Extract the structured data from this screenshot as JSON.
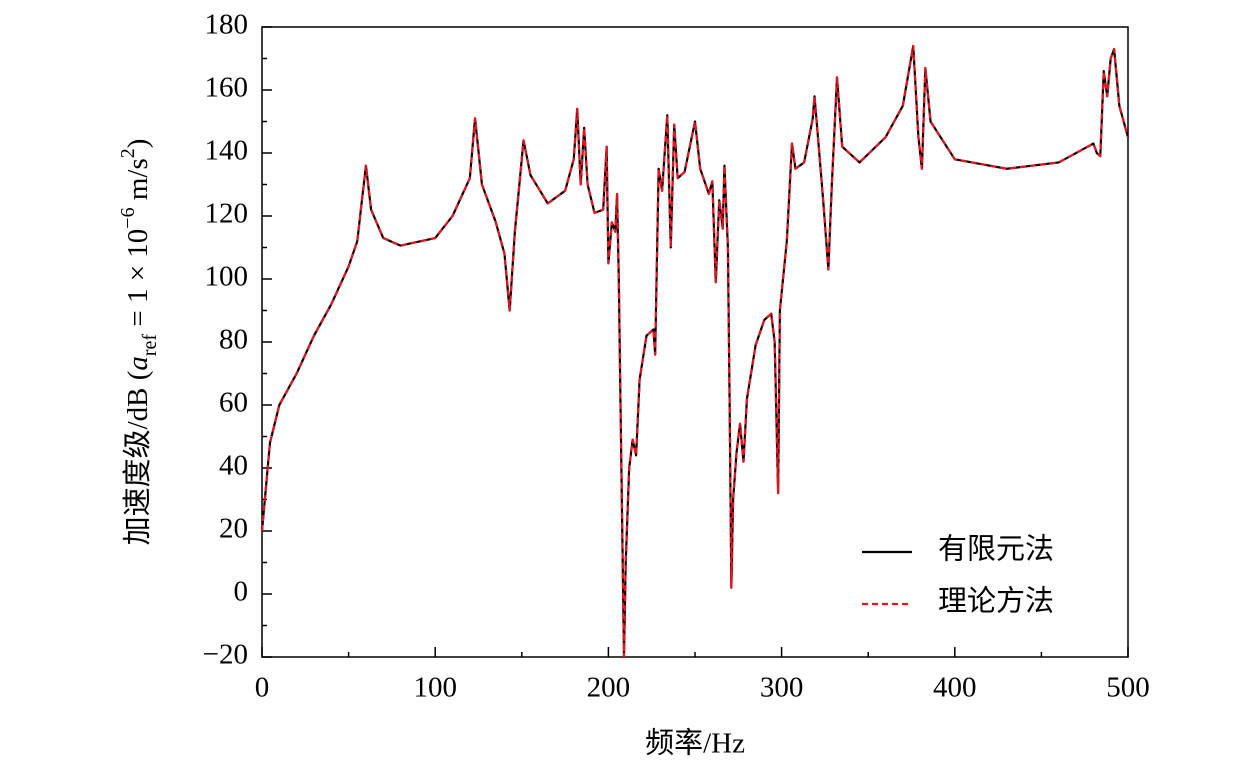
{
  "chart_data": {
    "type": "line",
    "x_label": "频率/Hz",
    "y_label": [
      "加速度级/dB (",
      "a",
      "ref",
      " = 1 × 10",
      "−6",
      " m/s",
      "2",
      ")"
    ],
    "x": [
      0,
      4.6,
      10,
      20,
      30,
      40,
      50,
      55,
      60,
      63,
      70,
      80,
      100,
      110,
      120,
      123,
      127,
      135,
      140,
      143,
      146,
      151,
      155,
      165,
      175,
      180,
      182,
      184,
      186,
      188,
      192,
      197,
      199,
      200,
      202,
      204,
      205,
      206,
      208,
      209,
      210,
      212,
      214,
      216,
      218,
      222,
      226,
      227,
      229,
      231,
      234,
      236,
      238,
      240,
      244,
      250,
      253,
      258,
      260,
      262,
      264,
      266,
      267,
      269,
      270,
      271,
      272,
      274,
      276,
      278,
      280,
      285,
      290,
      294,
      296,
      298,
      299,
      303,
      306,
      308,
      313,
      318,
      319,
      321,
      324,
      327,
      329,
      332,
      335,
      345,
      360,
      370,
      376,
      379,
      381,
      383,
      386,
      400,
      430,
      460,
      480,
      482,
      484,
      486,
      488,
      490,
      492,
      495,
      500
    ],
    "series": [
      {
        "name": "有限元法",
        "color": "#000000",
        "dash": false,
        "values": [
          20,
          48,
          60,
          70,
          82,
          92,
          104,
          112,
          136,
          122,
          113,
          110.6,
          113,
          120,
          132,
          151,
          130,
          118,
          108,
          90,
          115,
          144,
          133,
          124,
          128,
          138,
          154,
          130,
          148,
          130,
          121,
          122,
          142,
          105,
          118,
          115,
          127,
          100,
          20,
          -20,
          10,
          40,
          49,
          44,
          68,
          82,
          84,
          76,
          135,
          128,
          152,
          110,
          149,
          132,
          134,
          150,
          135,
          127,
          131,
          99,
          125,
          116,
          136,
          110,
          60,
          2,
          30,
          45,
          54,
          42,
          62,
          79,
          87,
          89,
          80,
          32,
          90,
          112,
          143,
          135,
          137,
          151,
          158,
          145,
          125,
          103,
          130,
          164,
          142,
          137,
          145,
          155,
          174,
          145,
          135,
          167,
          150,
          138,
          135,
          137,
          143,
          140,
          139,
          166,
          158,
          170,
          173,
          155,
          145
        ]
      },
      {
        "name": "理论方法",
        "color": "#e8141e",
        "dash": true,
        "values": [
          20,
          48,
          60,
          70,
          82,
          92,
          104,
          112,
          136,
          122,
          113,
          110.6,
          113,
          120,
          132,
          151,
          130,
          118,
          108,
          90,
          115,
          144,
          133,
          124,
          128,
          138,
          154,
          130,
          148,
          130,
          121,
          122,
          142,
          105,
          118,
          115,
          127,
          100,
          20,
          -20,
          10,
          40,
          49,
          44,
          68,
          82,
          84,
          76,
          135,
          128,
          152,
          110,
          149,
          132,
          134,
          150,
          135,
          127,
          131,
          99,
          125,
          116,
          136,
          110,
          60,
          2,
          30,
          45,
          54,
          42,
          62,
          79,
          87,
          89,
          80,
          32,
          90,
          112,
          143,
          135,
          137,
          151,
          158,
          145,
          125,
          103,
          130,
          164,
          142,
          137,
          145,
          155,
          174,
          145,
          135,
          167,
          150,
          138,
          135,
          137,
          143,
          140,
          139,
          166,
          158,
          170,
          173,
          155,
          145
        ]
      }
    ],
    "xlim": [
      0,
      500
    ],
    "xticks": [
      0,
      100,
      200,
      300,
      400,
      500
    ],
    "x_minor_ticks": [
      50,
      150,
      250,
      350,
      450
    ],
    "ylim": [
      -20,
      180
    ],
    "yticks": [
      {
        "value": -20,
        "label": "−20"
      },
      0,
      20,
      40,
      60,
      80,
      100,
      120,
      140,
      160,
      180
    ],
    "y_minor_ticks": [
      -10,
      10,
      30,
      50,
      70,
      90,
      110,
      130,
      150,
      170
    ],
    "legend": "lower right"
  }
}
